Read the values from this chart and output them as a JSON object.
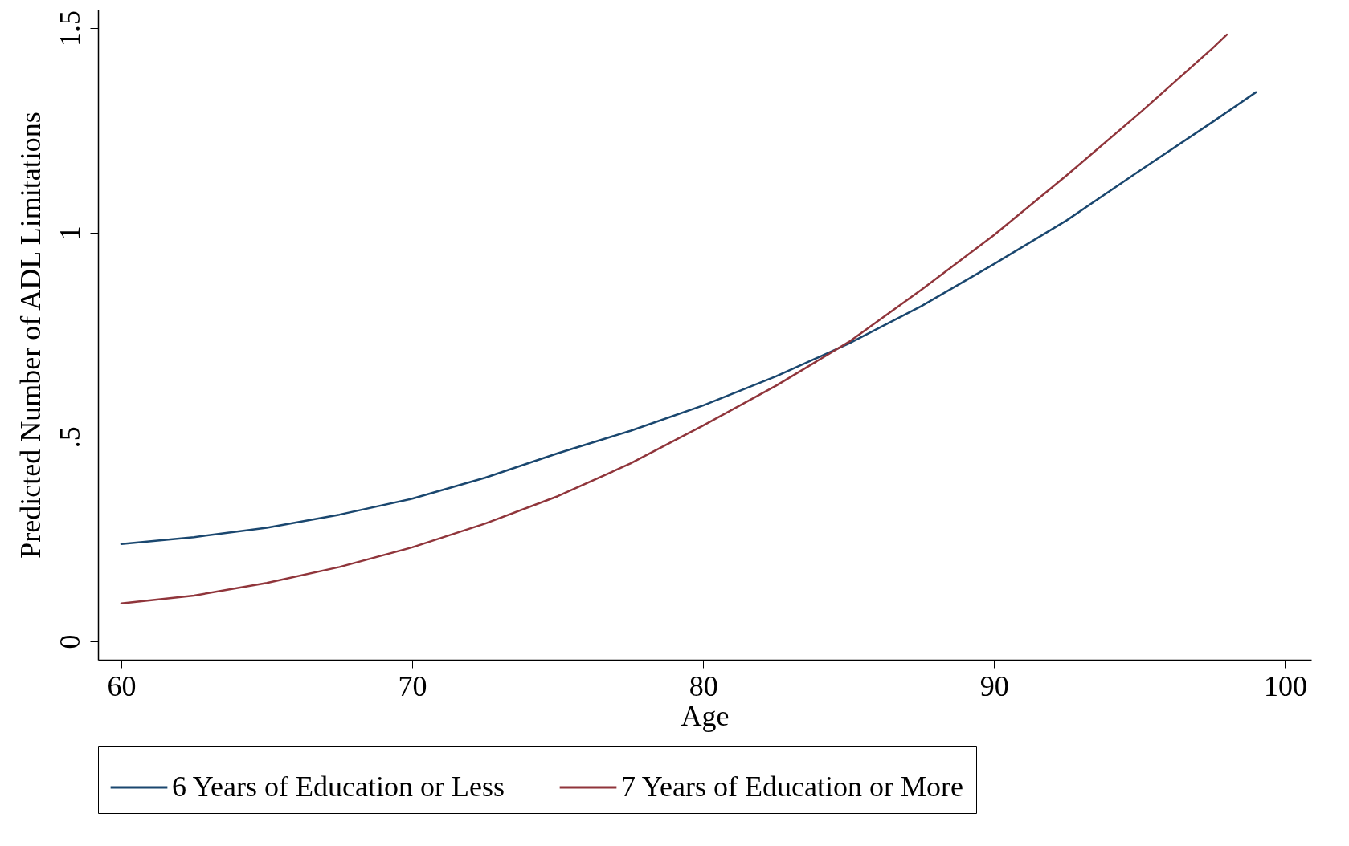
{
  "chart_data": {
    "type": "line",
    "xlabel": "Age",
    "ylabel": "Predicted Number of ADL Limitations",
    "xlim": [
      59.2,
      100.9
    ],
    "ylim": [
      -0.045,
      1.545
    ],
    "xticks": [
      60,
      70,
      80,
      90,
      100
    ],
    "yticks": [
      0,
      {
        "value": 0.5,
        "label": ".5"
      },
      1,
      1.5
    ],
    "grid": false,
    "legend": "bottom",
    "series": [
      {
        "name": "6 Years of Education or Less",
        "color": "#1a476f",
        "x": [
          60,
          62.5,
          65,
          67.5,
          70,
          72.5,
          75,
          77.5,
          80,
          82.5,
          85,
          87.5,
          90,
          92.5,
          95,
          97.5,
          99
        ],
        "values": [
          0.238,
          0.255,
          0.278,
          0.31,
          0.349,
          0.4,
          0.46,
          0.515,
          0.577,
          0.648,
          0.728,
          0.82,
          0.923,
          1.03,
          1.151,
          1.27,
          1.343
        ]
      },
      {
        "name": "7 Years of Education or More",
        "color": "#90353b",
        "x": [
          60,
          62.5,
          65,
          67.5,
          70,
          72.5,
          75,
          77.5,
          80,
          82.5,
          85,
          87.5,
          90,
          92.5,
          95,
          97.5,
          98
        ],
        "values": [
          0.093,
          0.112,
          0.143,
          0.182,
          0.23,
          0.288,
          0.355,
          0.435,
          0.528,
          0.625,
          0.732,
          0.86,
          0.994,
          1.14,
          1.292,
          1.45,
          1.484
        ]
      }
    ]
  }
}
